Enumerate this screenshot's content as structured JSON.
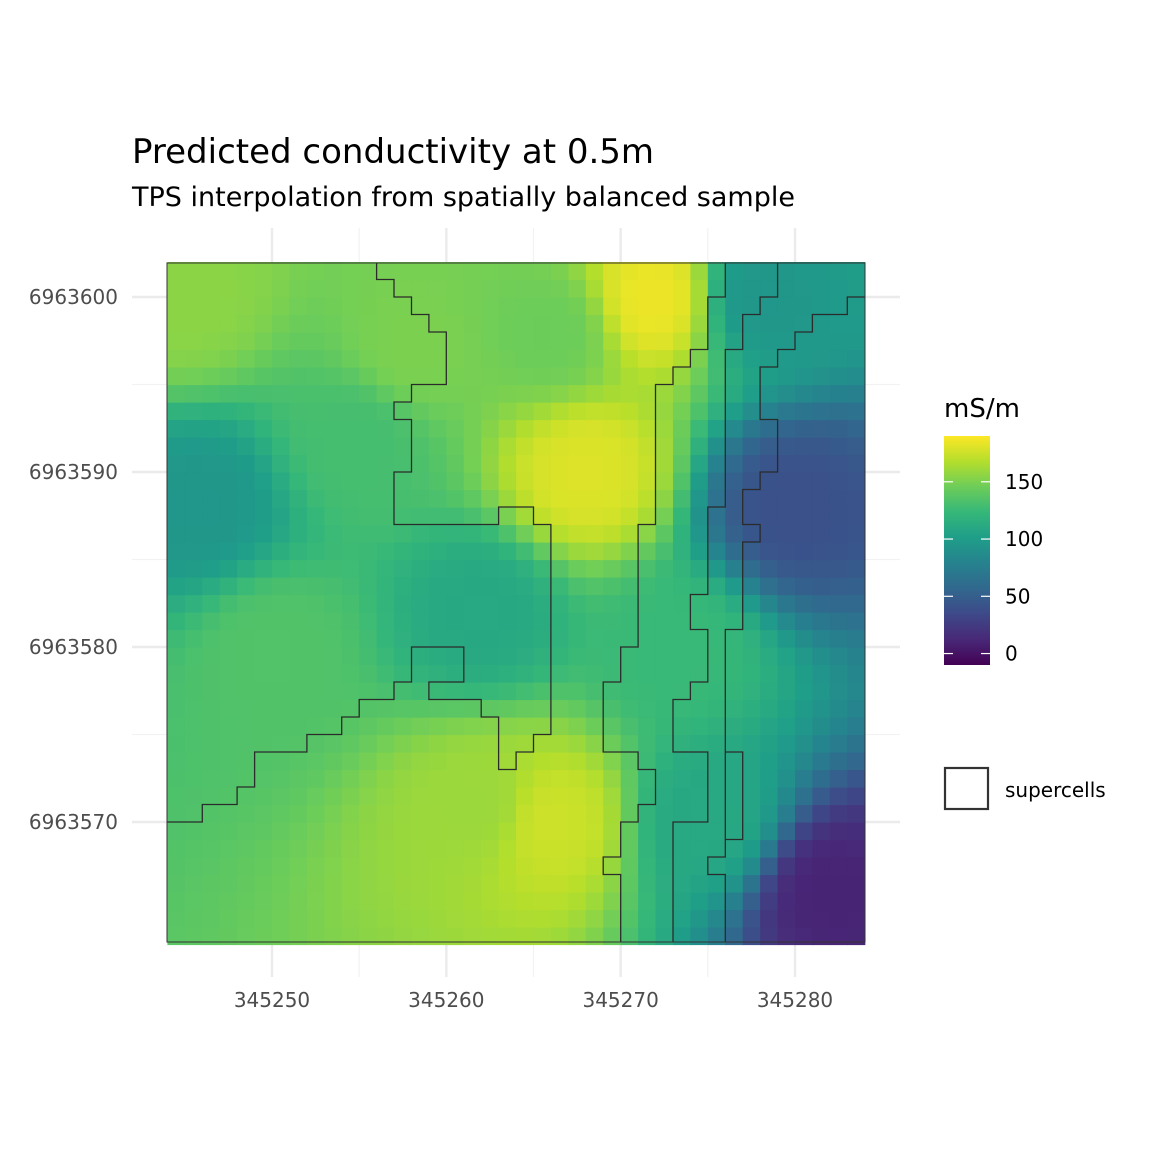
{
  "chart_data": {
    "type": "heatmap",
    "title": "Predicted conductivity at 0.5m",
    "subtitle": "TPS interpolation from spatially balanced sample",
    "x_ticks": [
      345250,
      345260,
      345270,
      345280
    ],
    "y_ticks": [
      6963600,
      6963590,
      6963580,
      6963570
    ],
    "x_tick_labels": [
      "345250",
      "345260",
      "345270",
      "345280"
    ],
    "y_tick_labels": [
      "6963600",
      "6963590",
      "6963580",
      "6963570"
    ],
    "xlim": [
      344244,
      345284
    ],
    "ylim": [
      6963563,
      6963602
    ],
    "legend": {
      "title": "mS/m",
      "colorscale": "viridis",
      "range": [
        -10,
        190
      ],
      "ticks": [
        0,
        50,
        100,
        150
      ],
      "tick_labels": [
        "0",
        "50",
        "100",
        "150"
      ],
      "outline_label": "supercells"
    },
    "field_anchors": [
      {
        "x": 345245,
        "y": 6963600,
        "value": 155
      },
      {
        "x": 345246,
        "y": 6963588,
        "value": 95
      },
      {
        "x": 345250,
        "y": 6963580,
        "value": 135
      },
      {
        "x": 345255,
        "y": 6963592,
        "value": 130
      },
      {
        "x": 345258,
        "y": 6963597,
        "value": 150
      },
      {
        "x": 345262,
        "y": 6963582,
        "value": 110
      },
      {
        "x": 345262,
        "y": 6963571,
        "value": 160
      },
      {
        "x": 345266,
        "y": 6963598,
        "value": 145
      },
      {
        "x": 345268,
        "y": 6963590,
        "value": 180
      },
      {
        "x": 345266,
        "y": 6963570,
        "value": 175
      },
      {
        "x": 345272,
        "y": 6963600,
        "value": 185
      },
      {
        "x": 345273,
        "y": 6963580,
        "value": 125
      },
      {
        "x": 345275,
        "y": 6963570,
        "value": 110
      },
      {
        "x": 345278,
        "y": 6963600,
        "value": 95
      },
      {
        "x": 345280,
        "y": 6963588,
        "value": 40
      },
      {
        "x": 345282,
        "y": 6963566,
        "value": 10
      }
    ],
    "supercell_boundaries": [
      [
        [
          345256,
          6963602
        ],
        [
          345256,
          6963601
        ],
        [
          345257,
          6963601
        ],
        [
          345257,
          6963600
        ],
        [
          345258,
          6963600
        ],
        [
          345258,
          6963599
        ],
        [
          345259,
          6963599
        ],
        [
          345259,
          6963598
        ],
        [
          345260,
          6963598
        ],
        [
          345260,
          6963595
        ],
        [
          345258,
          6963595
        ],
        [
          345258,
          6963594
        ],
        [
          345257,
          6963594
        ],
        [
          345257,
          6963593
        ],
        [
          345258,
          6963593
        ],
        [
          345258,
          6963590
        ],
        [
          345257,
          6963590
        ],
        [
          345257,
          6963587
        ],
        [
          345263,
          6963587
        ],
        [
          345263,
          6963588
        ],
        [
          345265,
          6963588
        ],
        [
          345265,
          6963587
        ],
        [
          345266,
          6963587
        ],
        [
          345266,
          6963575
        ],
        [
          345265,
          6963575
        ],
        [
          345265,
          6963574
        ],
        [
          345264,
          6963574
        ],
        [
          345264,
          6963573
        ],
        [
          345263,
          6963573
        ],
        [
          345263,
          6963576
        ],
        [
          345262,
          6963576
        ],
        [
          345262,
          6963577
        ],
        [
          345259,
          6963577
        ],
        [
          345259,
          6963578
        ],
        [
          345261,
          6963578
        ],
        [
          345261,
          6963580
        ],
        [
          345258,
          6963580
        ],
        [
          345258,
          6963578
        ],
        [
          345257,
          6963578
        ],
        [
          345257,
          6963577
        ],
        [
          345255,
          6963577
        ],
        [
          345255,
          6963576
        ],
        [
          345254,
          6963576
        ],
        [
          345254,
          6963575
        ],
        [
          345252,
          6963575
        ],
        [
          345252,
          6963574
        ],
        [
          345249,
          6963574
        ],
        [
          345249,
          6963572
        ],
        [
          345248,
          6963572
        ],
        [
          345248,
          6963571
        ],
        [
          345246,
          6963571
        ],
        [
          345246,
          6963570
        ],
        [
          345244,
          6963570
        ]
      ],
      [
        [
          345270,
          6963563
        ],
        [
          345270,
          6963567
        ],
        [
          345269,
          6963567
        ],
        [
          345269,
          6963568
        ],
        [
          345270,
          6963568
        ],
        [
          345270,
          6963570
        ],
        [
          345271,
          6963570
        ],
        [
          345271,
          6963571
        ],
        [
          345272,
          6963571
        ],
        [
          345272,
          6963573
        ],
        [
          345271,
          6963573
        ],
        [
          345271,
          6963574
        ],
        [
          345269,
          6963574
        ],
        [
          345269,
          6963578
        ],
        [
          345270,
          6963578
        ],
        [
          345270,
          6963580
        ],
        [
          345271,
          6963580
        ],
        [
          345271,
          6963587
        ],
        [
          345272,
          6963587
        ],
        [
          345272,
          6963595
        ],
        [
          345273,
          6963595
        ],
        [
          345273,
          6963596
        ],
        [
          345274,
          6963596
        ],
        [
          345274,
          6963597
        ],
        [
          345275,
          6963597
        ],
        [
          345275,
          6963600
        ],
        [
          345276,
          6963600
        ],
        [
          345276,
          6963602
        ]
      ],
      [
        [
          345273,
          6963563
        ],
        [
          345273,
          6963570
        ],
        [
          345275,
          6963570
        ],
        [
          345275,
          6963574
        ],
        [
          345273,
          6963574
        ],
        [
          345273,
          6963577
        ],
        [
          345274,
          6963577
        ],
        [
          345274,
          6963578
        ],
        [
          345275,
          6963578
        ],
        [
          345275,
          6963581
        ],
        [
          345274,
          6963581
        ],
        [
          345274,
          6963583
        ],
        [
          345275,
          6963583
        ],
        [
          345275,
          6963588
        ],
        [
          345276,
          6963588
        ],
        [
          345276,
          6963597
        ],
        [
          345277,
          6963597
        ],
        [
          345277,
          6963599
        ],
        [
          345278,
          6963599
        ],
        [
          345278,
          6963600
        ],
        [
          345279,
          6963600
        ],
        [
          345279,
          6963602
        ]
      ],
      [
        [
          345276,
          6963563
        ],
        [
          345276,
          6963567
        ],
        [
          345275,
          6963567
        ],
        [
          345275,
          6963568
        ],
        [
          345276,
          6963568
        ],
        [
          345276,
          6963574
        ],
        [
          345277,
          6963574
        ],
        [
          345277,
          6963569
        ],
        [
          345276,
          6963569
        ],
        [
          345276,
          6963581
        ],
        [
          345277,
          6963581
        ],
        [
          345277,
          6963586
        ],
        [
          345278,
          6963586
        ],
        [
          345278,
          6963587
        ],
        [
          345277,
          6963587
        ],
        [
          345277,
          6963589
        ],
        [
          345278,
          6963589
        ],
        [
          345278,
          6963590
        ],
        [
          345279,
          6963590
        ],
        [
          345279,
          6963593
        ],
        [
          345278,
          6963593
        ],
        [
          345278,
          6963596
        ],
        [
          345279,
          6963596
        ],
        [
          345279,
          6963597
        ],
        [
          345280,
          6963597
        ],
        [
          345280,
          6963598
        ],
        [
          345281,
          6963598
        ],
        [
          345281,
          6963599
        ],
        [
          345283,
          6963599
        ],
        [
          345283,
          6963600
        ],
        [
          345284,
          6963600
        ]
      ]
    ]
  }
}
